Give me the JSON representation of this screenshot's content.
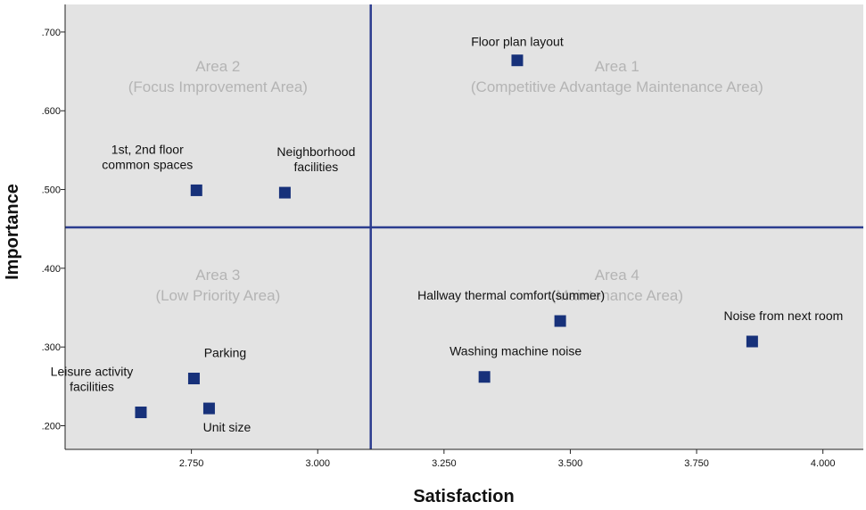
{
  "chart_data": {
    "type": "scatter",
    "xlabel": "Satisfaction",
    "ylabel": "Importance",
    "xlim": [
      2.5,
      4.08
    ],
    "ylim": [
      0.17,
      0.735
    ],
    "x_ticks": [
      {
        "value": 2.75,
        "label": "2.750"
      },
      {
        "value": 3.0,
        "label": "3.000"
      },
      {
        "value": 3.25,
        "label": "3.250"
      },
      {
        "value": 3.5,
        "label": "3.500"
      },
      {
        "value": 3.75,
        "label": "3.750"
      },
      {
        "value": 4.0,
        "label": "4.000"
      }
    ],
    "y_ticks": [
      {
        "value": 0.2,
        "label": ".200"
      },
      {
        "value": 0.3,
        "label": ".300"
      },
      {
        "value": 0.4,
        "label": ".400"
      },
      {
        "value": 0.5,
        "label": ".500"
      },
      {
        "value": 0.6,
        "label": ".600"
      },
      {
        "value": 0.7,
        "label": ".700"
      }
    ],
    "reference_lines": {
      "x": 3.105,
      "y": 0.452
    },
    "areas": [
      {
        "title": "Area 1",
        "subtitle": "(Competitive Advantage Maintenance Area)",
        "quadrant": "top-right"
      },
      {
        "title": "Area 2",
        "subtitle": "(Focus Improvement Area)",
        "quadrant": "top-left"
      },
      {
        "title": "Area 3",
        "subtitle": "(Low Priority Area)",
        "quadrant": "bottom-left"
      },
      {
        "title": "Area 4",
        "subtitle": "(Maintenance Area)",
        "quadrant": "bottom-right"
      }
    ],
    "points": [
      {
        "label": [
          "Floor plan layout"
        ],
        "x": 3.395,
        "y": 0.664,
        "label_pos": "above"
      },
      {
        "label": [
          "1st, 2nd floor",
          "common spaces"
        ],
        "x": 2.76,
        "y": 0.499,
        "label_pos": "above-left"
      },
      {
        "label": [
          "Neighborhood",
          "facilities"
        ],
        "x": 2.935,
        "y": 0.496,
        "label_pos": "above-right"
      },
      {
        "label": [
          "Hallway thermal comfort(summer)"
        ],
        "x": 3.48,
        "y": 0.333,
        "label_pos": "above-left"
      },
      {
        "label": [
          "Noise from next room"
        ],
        "x": 3.86,
        "y": 0.307,
        "label_pos": "above-right"
      },
      {
        "label": [
          "Washing machine noise"
        ],
        "x": 3.33,
        "y": 0.262,
        "label_pos": "above-right"
      },
      {
        "label": [
          "Parking"
        ],
        "x": 2.755,
        "y": 0.26,
        "label_pos": "above-right"
      },
      {
        "label": [
          "Leisure activity",
          "facilities"
        ],
        "x": 2.65,
        "y": 0.217,
        "label_pos": "above-left"
      },
      {
        "label": [
          "Unit size"
        ],
        "x": 2.785,
        "y": 0.222,
        "label_pos": "below-right"
      }
    ],
    "colors": {
      "plot_background": "#e3e3e3",
      "marker": "#17317a",
      "reference_line": "#2c3d8f",
      "area_text": "#b4b4b4"
    }
  }
}
